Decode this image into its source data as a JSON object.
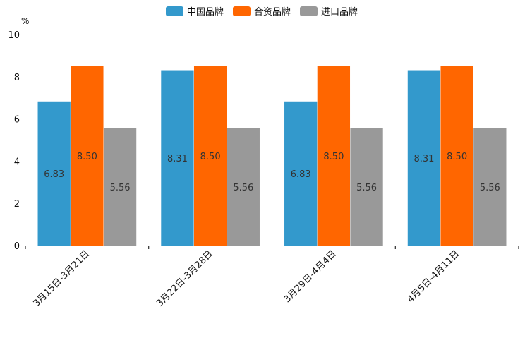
{
  "chart_data": {
    "type": "bar",
    "unit_label": "%",
    "categories": [
      "3月15日-3月21日",
      "3月22日-3月28日",
      "3月29日-4月4日",
      "4月5日-4月11日"
    ],
    "series": [
      {
        "name": "中国品牌",
        "color": "#3399CC",
        "values": [
          6.83,
          8.31,
          6.83,
          8.31
        ]
      },
      {
        "name": "合资品牌",
        "color": "#FF6600",
        "values": [
          8.5,
          8.5,
          8.5,
          8.5
        ]
      },
      {
        "name": "进口品牌",
        "color": "#999999",
        "values": [
          5.56,
          5.56,
          5.56,
          5.56
        ]
      }
    ],
    "ylim": [
      0,
      10
    ],
    "yticks": [
      0,
      2,
      4,
      6,
      8,
      10
    ],
    "legend_position": "top-center",
    "grid": false,
    "xlabel": "",
    "ylabel": "%"
  }
}
